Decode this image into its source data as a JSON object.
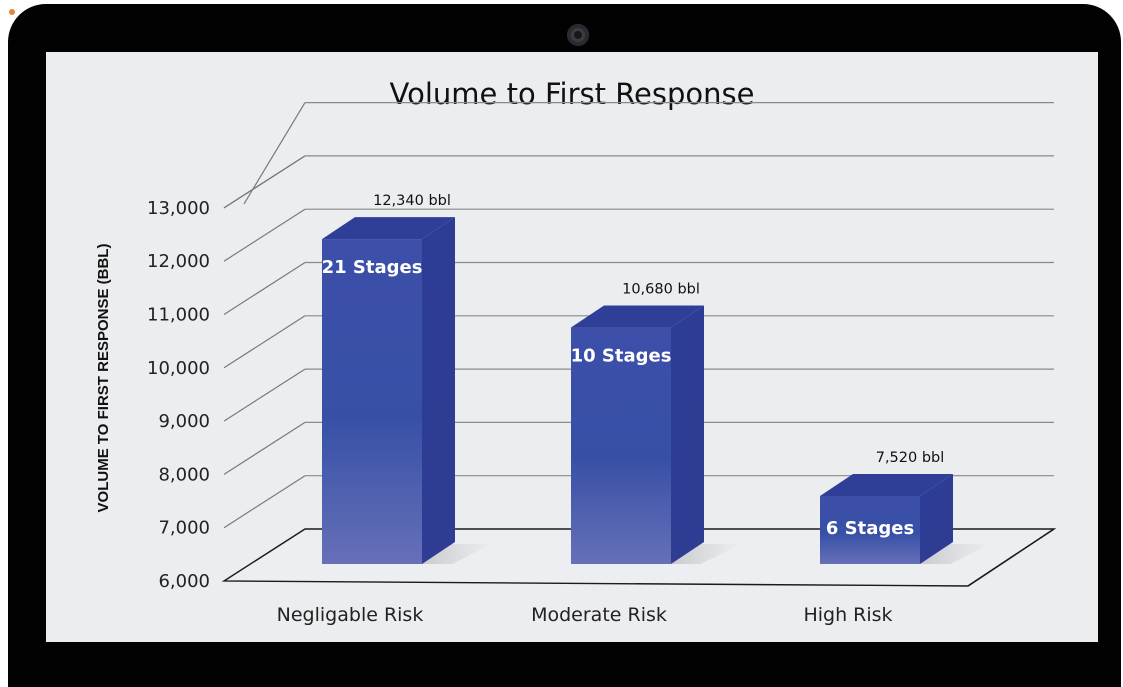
{
  "chart_data": {
    "type": "bar",
    "title": "Volume to First Response",
    "ylabel": "VOLUME TO FIRST RESPONSE (BBL)",
    "xlabel": "",
    "ylim": [
      6000,
      13000
    ],
    "yticks": [
      "6,000",
      "7,000",
      "8,000",
      "9,000",
      "10,000",
      "11,000",
      "12,000",
      "13,000"
    ],
    "categories": [
      "Negligable Risk",
      "Moderate Risk",
      "High Risk"
    ],
    "values": [
      12340,
      10680,
      7520
    ],
    "value_labels": [
      "12,340 bbl",
      "10,680 bbl",
      "7,520 bbl"
    ],
    "bar_labels": [
      "21 Stages",
      "10 Stages",
      "6 Stages"
    ],
    "grid": true,
    "bar_color": "#4050a8"
  }
}
